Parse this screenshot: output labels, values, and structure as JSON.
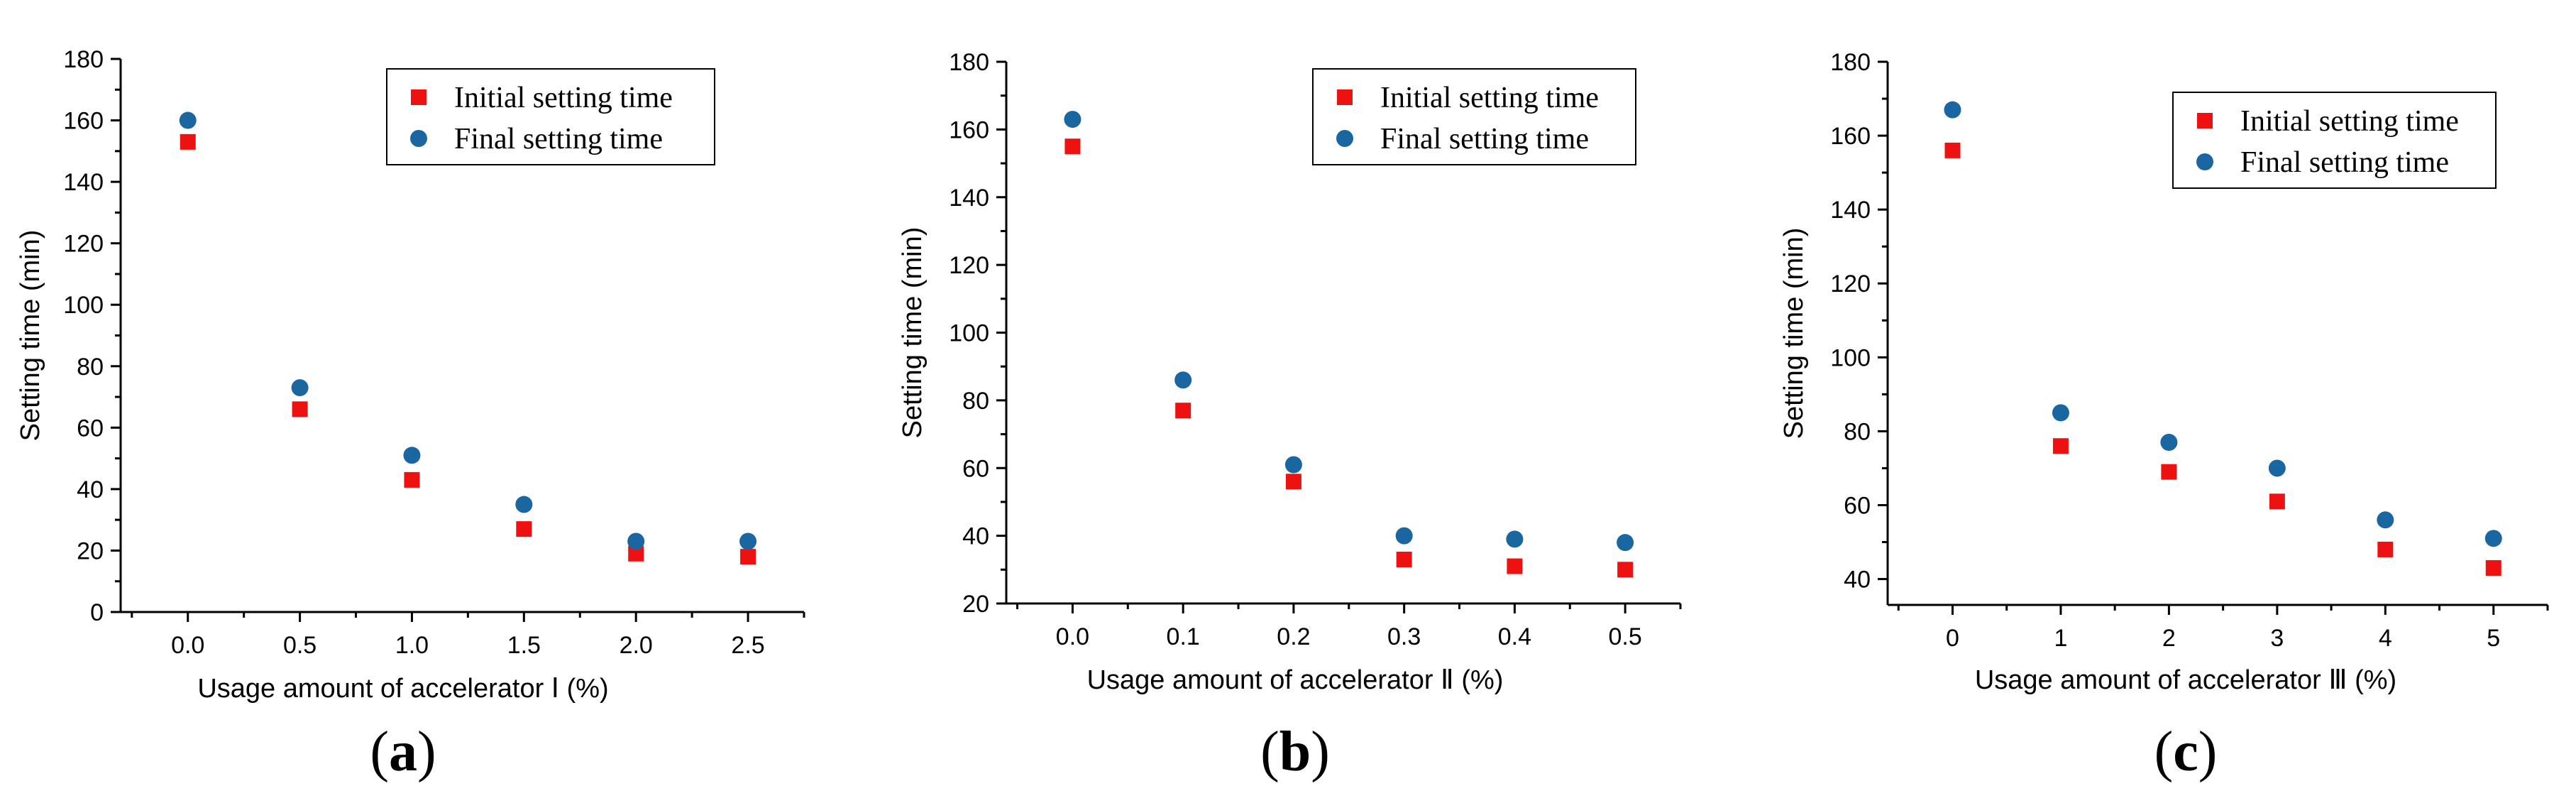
{
  "colors": {
    "initial": "#ee1111",
    "final": "#1a66a0"
  },
  "chart_data": [
    {
      "type": "scatter",
      "panel_label": "a",
      "xlabel": "Usage amount of accelerator Ⅰ (%)",
      "ylabel": "Setting time (min)",
      "x": [
        0.0,
        0.5,
        1.0,
        1.5,
        2.0,
        2.5
      ],
      "x_tick_labels": [
        "0.0",
        "0.5",
        "1.0",
        "1.5",
        "2.0",
        "2.5"
      ],
      "y_ticks": [
        "0",
        "20",
        "40",
        "60",
        "80",
        "100",
        "120",
        "140",
        "160",
        "180"
      ],
      "xlim": [
        -0.3,
        2.75
      ],
      "ylim": [
        0,
        180
      ],
      "legend_position": "top-right",
      "series": [
        {
          "name": "Initial setting time",
          "marker": "square",
          "values": [
            153,
            66,
            43,
            27,
            19,
            18
          ]
        },
        {
          "name": "Final setting time",
          "marker": "circle",
          "values": [
            160,
            73,
            51,
            35,
            23,
            23
          ]
        }
      ]
    },
    {
      "type": "scatter",
      "panel_label": "b",
      "xlabel": "Usage amount of accelerator Ⅱ (%)",
      "ylabel": "Setting time (min)",
      "x": [
        0.0,
        0.1,
        0.2,
        0.3,
        0.4,
        0.5
      ],
      "x_tick_labels": [
        "0.0",
        "0.1",
        "0.2",
        "0.3",
        "0.4",
        "0.5"
      ],
      "y_ticks": [
        "20",
        "40",
        "60",
        "80",
        "100",
        "120",
        "140",
        "160",
        "180"
      ],
      "xlim": [
        -0.06,
        0.55
      ],
      "ylim": [
        20,
        180
      ],
      "legend_position": "top-right",
      "series": [
        {
          "name": "Initial setting time",
          "marker": "square",
          "values": [
            155,
            77,
            56,
            33,
            31,
            30
          ]
        },
        {
          "name": "Final setting time",
          "marker": "circle",
          "values": [
            163,
            86,
            61,
            40,
            39,
            38
          ]
        }
      ]
    },
    {
      "type": "scatter",
      "panel_label": "c",
      "xlabel": "Usage amount of accelerator Ⅲ (%)",
      "ylabel": "Setting time (min)",
      "x": [
        0,
        1,
        2,
        3,
        4,
        5
      ],
      "x_tick_labels": [
        "0",
        "1",
        "2",
        "3",
        "4",
        "5"
      ],
      "y_ticks": [
        "40",
        "60",
        "80",
        "100",
        "120",
        "140",
        "160",
        "180"
      ],
      "xlim": [
        -0.6,
        5.5
      ],
      "ylim": [
        33,
        180
      ],
      "legend_position": "top-right",
      "series": [
        {
          "name": "Initial setting time",
          "marker": "square",
          "values": [
            156,
            76,
            69,
            61,
            48,
            43
          ]
        },
        {
          "name": "Final setting time",
          "marker": "circle",
          "values": [
            167,
            85,
            77,
            70,
            56,
            51
          ]
        }
      ]
    }
  ]
}
